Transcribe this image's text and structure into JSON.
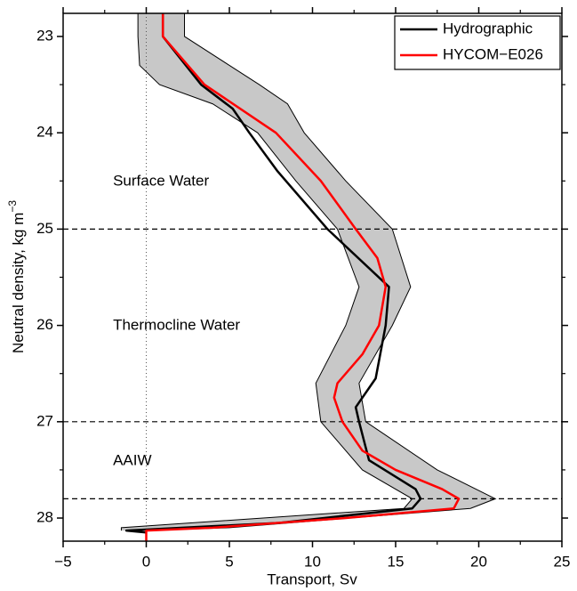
{
  "chart_data": {
    "type": "line",
    "xlabel": "Transport, Sv",
    "ylabel": {
      "text": "Neutral density, kg m",
      "superscript": "−3"
    },
    "xlim": [
      -5,
      25
    ],
    "ylim": [
      22.76,
      28.24
    ],
    "y_inverted": true,
    "xticks": [
      {
        "value": -5,
        "label": "−5"
      },
      0,
      5,
      10,
      15,
      20,
      25
    ],
    "xminorticks": [
      -2.5,
      2.5,
      7.5,
      12.5,
      17.5,
      22.5
    ],
    "yticks": [
      23,
      24,
      25,
      26,
      27,
      28
    ],
    "yminorticks": [
      23.5,
      24.5,
      25.5,
      26.5,
      27.5
    ],
    "hlines": [
      25,
      27,
      27.8
    ],
    "vline": 0,
    "legend": "upper right",
    "annotations": [
      "Surface Water",
      "Thermocline Water",
      "AAIW"
    ],
    "band": {
      "color": "#c8c8c8",
      "y": [
        22.76,
        23.0,
        23.3,
        23.5,
        23.7,
        24.0,
        24.5,
        25.0,
        25.6,
        26.0,
        26.6,
        27.0,
        27.5,
        27.8,
        27.9,
        28.1,
        28.13
      ],
      "lower": [
        -0.5,
        -0.5,
        -0.4,
        0.8,
        4.0,
        6.7,
        9.0,
        11.5,
        12.8,
        12.0,
        10.2,
        10.5,
        13.0,
        16.0,
        15.5,
        -1.5,
        -1.5
      ],
      "upper": [
        2.3,
        2.3,
        5.0,
        6.8,
        8.5,
        9.5,
        12.0,
        14.8,
        15.9,
        14.8,
        12.8,
        13.2,
        17.5,
        21.0,
        19.5,
        5.0,
        0.0
      ]
    },
    "series": [
      {
        "name": "Hydrographic",
        "color": "#000000",
        "y": [
          22.76,
          23.0,
          23.5,
          23.75,
          24.0,
          24.4,
          25.0,
          25.6,
          26.0,
          26.55,
          26.85,
          27.0,
          27.4,
          27.7,
          27.8,
          27.9,
          28.05,
          28.13,
          28.15
        ],
        "x": [
          1.0,
          1.0,
          3.3,
          5.2,
          6.2,
          7.9,
          10.9,
          14.6,
          14.4,
          13.8,
          12.6,
          12.8,
          13.4,
          16.2,
          16.5,
          16.0,
          8.0,
          -1.2,
          0.0
        ]
      },
      {
        "name": "HYCOM−E026",
        "color": "#ff0000",
        "y": [
          22.76,
          23.0,
          23.5,
          24.0,
          24.5,
          25.0,
          25.3,
          25.6,
          26.0,
          26.3,
          26.6,
          26.75,
          27.0,
          27.3,
          27.5,
          27.7,
          27.8,
          27.9,
          28.0,
          28.1,
          28.13,
          28.24
        ],
        "x": [
          1.0,
          1.0,
          3.5,
          7.8,
          10.5,
          12.6,
          13.9,
          14.4,
          14.0,
          13.0,
          11.5,
          11.3,
          11.8,
          13.0,
          15.0,
          17.8,
          18.8,
          18.5,
          12.0,
          4.0,
          0.0,
          0.0
        ]
      }
    ]
  }
}
